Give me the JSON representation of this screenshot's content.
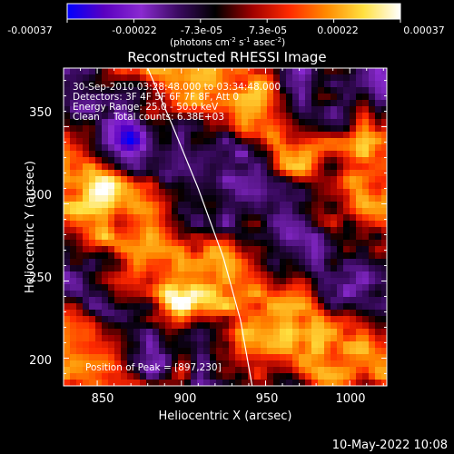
{
  "colorbar": {
    "ticks": [
      "-0.00037",
      "-0.00022",
      "-7.3e-05",
      "7.3e-05",
      "0.00022",
      "0.00037"
    ],
    "units_main": "(photons cm",
    "units_exp1": "-2",
    "units_s": " s",
    "units_exp2": "-1",
    "units_asec": " asec",
    "units_exp3": "-2",
    "units_close": ")",
    "colors": [
      "#0000ff",
      "#5a00c0",
      "#8a2ad0",
      "#3a0a60",
      "#000000",
      "#a00000",
      "#ff2a00",
      "#ff8a00",
      "#ffe040",
      "#ffffff"
    ]
  },
  "annotations": {
    "time": "30-Sep-2010 03:28:48.000 to 03:34:48.000",
    "detectors": "Detectors: 3F 4F 5F 6F 7F 8F, Att 0",
    "energy": "Energy Range: 25.0 - 50.0 keV",
    "clean": "Clean",
    "counts": "Total counts: 6.38E+03",
    "peak": "Position of Peak = [897,230]"
  },
  "footer": {
    "date": "10-May-2022 10:08"
  },
  "chart_data": {
    "type": "heatmap",
    "title": "Reconstructed RHESSI Image",
    "xlabel": "Heliocentric X (arcsec)",
    "ylabel": "Heliocentric Y (arcsec)",
    "xlim": [
      830,
      1022
    ],
    "ylim": [
      182,
      388
    ],
    "xticks": [
      "850",
      "900",
      "950",
      "1000"
    ],
    "yticks": [
      "200",
      "250",
      "300",
      "350"
    ],
    "value_range": [
      -0.00037,
      0.00037
    ],
    "peak_position": [
      897,
      230
    ],
    "limb_curve": [
      [
        880,
        388
      ],
      [
        895,
        350
      ],
      [
        910,
        310
      ],
      [
        925,
        265
      ],
      [
        935,
        225
      ],
      [
        942,
        182
      ]
    ]
  }
}
